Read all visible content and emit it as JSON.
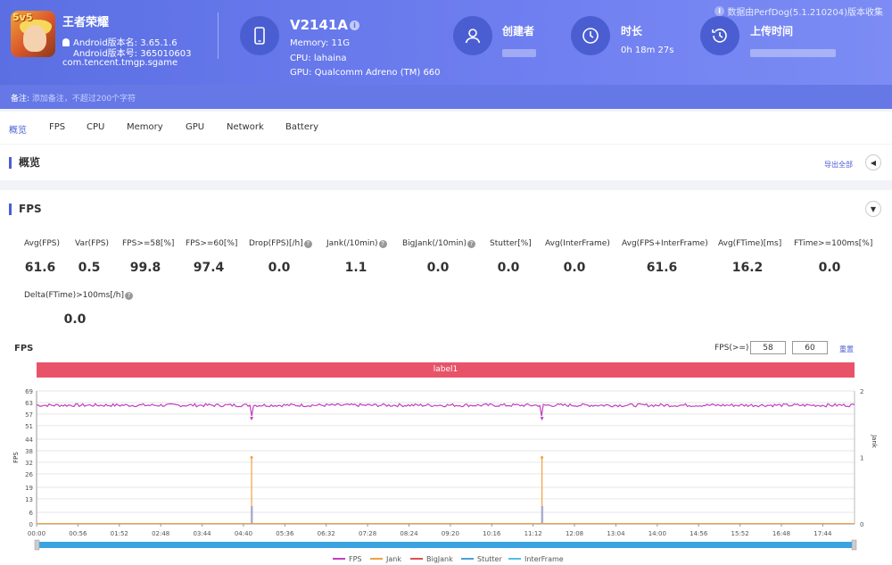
{
  "app": {
    "name": "王者荣耀",
    "icon_badge": "5v5",
    "version_name": "Android版本名: 3.65.1.6",
    "version_code": "Android版本号: 365010603",
    "package": "com.tencent.tmgp.sgame"
  },
  "device": {
    "title": "V2141A",
    "memory": "Memory: 11G",
    "cpu": "CPU: lahaina",
    "gpu": "GPU: Qualcomm Adreno (TM) 660"
  },
  "creator": {
    "title": "创建者"
  },
  "duration": {
    "title": "时长",
    "value": "0h 18m 27s"
  },
  "upload": {
    "title": "上传时间"
  },
  "source_note": "数据由PerfDog(5.1.210204)版本收集",
  "remark": {
    "label": "备注:",
    "placeholder": "添加备注，不超过200个字符"
  },
  "tabs": [
    "概览",
    "FPS",
    "CPU",
    "Memory",
    "GPU",
    "Network",
    "Battery"
  ],
  "overview": {
    "title": "概览",
    "export_label": "导出全部"
  },
  "fps_section": {
    "title": "FPS",
    "metrics": [
      {
        "label": "Avg(FPS)",
        "value": "61.6"
      },
      {
        "label": "Var(FPS)",
        "value": "0.5"
      },
      {
        "label": "FPS>=58[%]",
        "value": "99.8"
      },
      {
        "label": "FPS>=60[%]",
        "value": "97.4"
      },
      {
        "label": "Drop(FPS)[/h]",
        "value": "0.0"
      },
      {
        "label": "Jank(/10min)",
        "value": "1.1"
      },
      {
        "label": "BigJank(/10min)",
        "value": "0.0"
      },
      {
        "label": "Stutter[%]",
        "value": "0.0"
      },
      {
        "label": "Avg(InterFrame)",
        "value": "0.0"
      },
      {
        "label": "Avg(FPS+InterFrame)",
        "value": "61.6"
      },
      {
        "label": "Avg(FTime)[ms]",
        "value": "16.2"
      },
      {
        "label": "FTime>=100ms[%]",
        "value": "0.0"
      },
      {
        "label": "Delta(FTime)>100ms[/h]",
        "value": "0.0"
      }
    ],
    "chart_title": "FPS",
    "threshold_label": "FPS(>=)",
    "threshold_1": "58",
    "threshold_2": "60",
    "reset_label": "重置",
    "band_label": "label1"
  },
  "chart_data": {
    "type": "line",
    "ylabel": "FPS",
    "y2label": "Jank",
    "yticks": [
      "0",
      "6",
      "13",
      "19",
      "26",
      "32",
      "38",
      "44",
      "51",
      "57",
      "63",
      "69"
    ],
    "y2ticks": [
      "0",
      "1",
      "2"
    ],
    "ylim": [
      0,
      69
    ],
    "y2lim": [
      0,
      2
    ],
    "x_ticks": [
      "00:00",
      "00:56",
      "01:52",
      "02:48",
      "03:44",
      "04:40",
      "05:36",
      "06:32",
      "07:28",
      "08:24",
      "09:20",
      "10:16",
      "11:12",
      "12:08",
      "13:04",
      "14:00",
      "14:56",
      "15:52",
      "16:48",
      "17:44"
    ],
    "duration_seconds": 1107,
    "fps_baseline": 61.6,
    "fps_dips": [
      {
        "t": 291,
        "fps": 56
      },
      {
        "t": 684,
        "fps": 56
      }
    ],
    "jank_events": [
      {
        "t": 291,
        "jank": 1
      },
      {
        "t": 684,
        "jank": 1
      }
    ],
    "series": [
      {
        "name": "FPS",
        "color": "#c040c0"
      },
      {
        "name": "Jank",
        "color": "#f0a040"
      },
      {
        "name": "BigJank",
        "color": "#e05050"
      },
      {
        "name": "Stutter",
        "color": "#4aa0d8"
      },
      {
        "name": "InterFrame",
        "color": "#50c0e8"
      }
    ],
    "grid": true,
    "legend": "bottom"
  }
}
